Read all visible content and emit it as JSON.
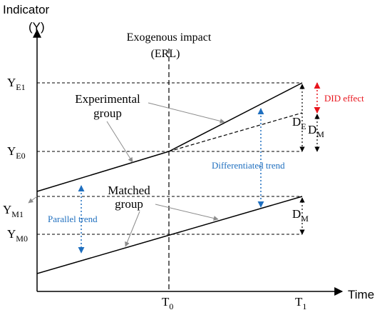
{
  "axes": {
    "y_label_line1": "Indicator",
    "y_label_line2": "(Y)",
    "x_label": "Time"
  },
  "impact": {
    "label_line1": "Exogenous impact",
    "label_line2": "(ERL)"
  },
  "ticks": {
    "y": [
      {
        "main": "Y",
        "sub": "E1"
      },
      {
        "main": "Y",
        "sub": "E0"
      },
      {
        "main": "Y",
        "sub": "M1"
      },
      {
        "main": "Y",
        "sub": "M0"
      }
    ],
    "x": [
      {
        "main": "T",
        "sub": "0"
      },
      {
        "main": "T",
        "sub": "1"
      }
    ]
  },
  "groups": {
    "experimental_line1": "Experimental",
    "experimental_line2": "group",
    "matched_line1": "Matched",
    "matched_line2": "group"
  },
  "annotations": {
    "did_effect": "DID effect",
    "differentiated_trend": "Differentiated trend",
    "parallel_trend": "Parallel trend",
    "de": {
      "main": "D",
      "sub": "E"
    },
    "dm_upper": {
      "main": "D",
      "sub": "M"
    },
    "dm_lower": {
      "main": "D",
      "sub": "M"
    }
  },
  "colors": {
    "line": "#000000",
    "blue": "#1f6fbf",
    "red": "#e8141c",
    "gray_arrow": "#8c8c8c"
  }
}
